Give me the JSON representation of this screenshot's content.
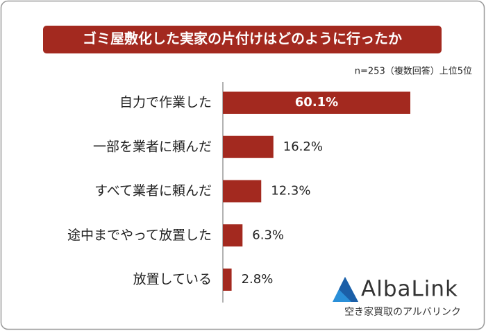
{
  "chart_data": {
    "type": "bar",
    "orientation": "horizontal",
    "title": "ゴミ屋敷化した実家の片付けはどのように行ったか",
    "subtitle": "n=253（複数回答）上位5位",
    "categories": [
      "自力で作業した",
      "一部を業者に頼んだ",
      "すべて業者に頼んだ",
      "途中までやって放置した",
      "放置している"
    ],
    "values": [
      60.1,
      16.2,
      12.3,
      6.3,
      2.8
    ],
    "value_labels": [
      "60.1%",
      "16.2%",
      "12.3%",
      "6.3%",
      "2.8%"
    ],
    "color": "#a3291f"
  },
  "logo": {
    "name": "AlbaLink",
    "tagline": "空き家買取のアルバリンク"
  }
}
